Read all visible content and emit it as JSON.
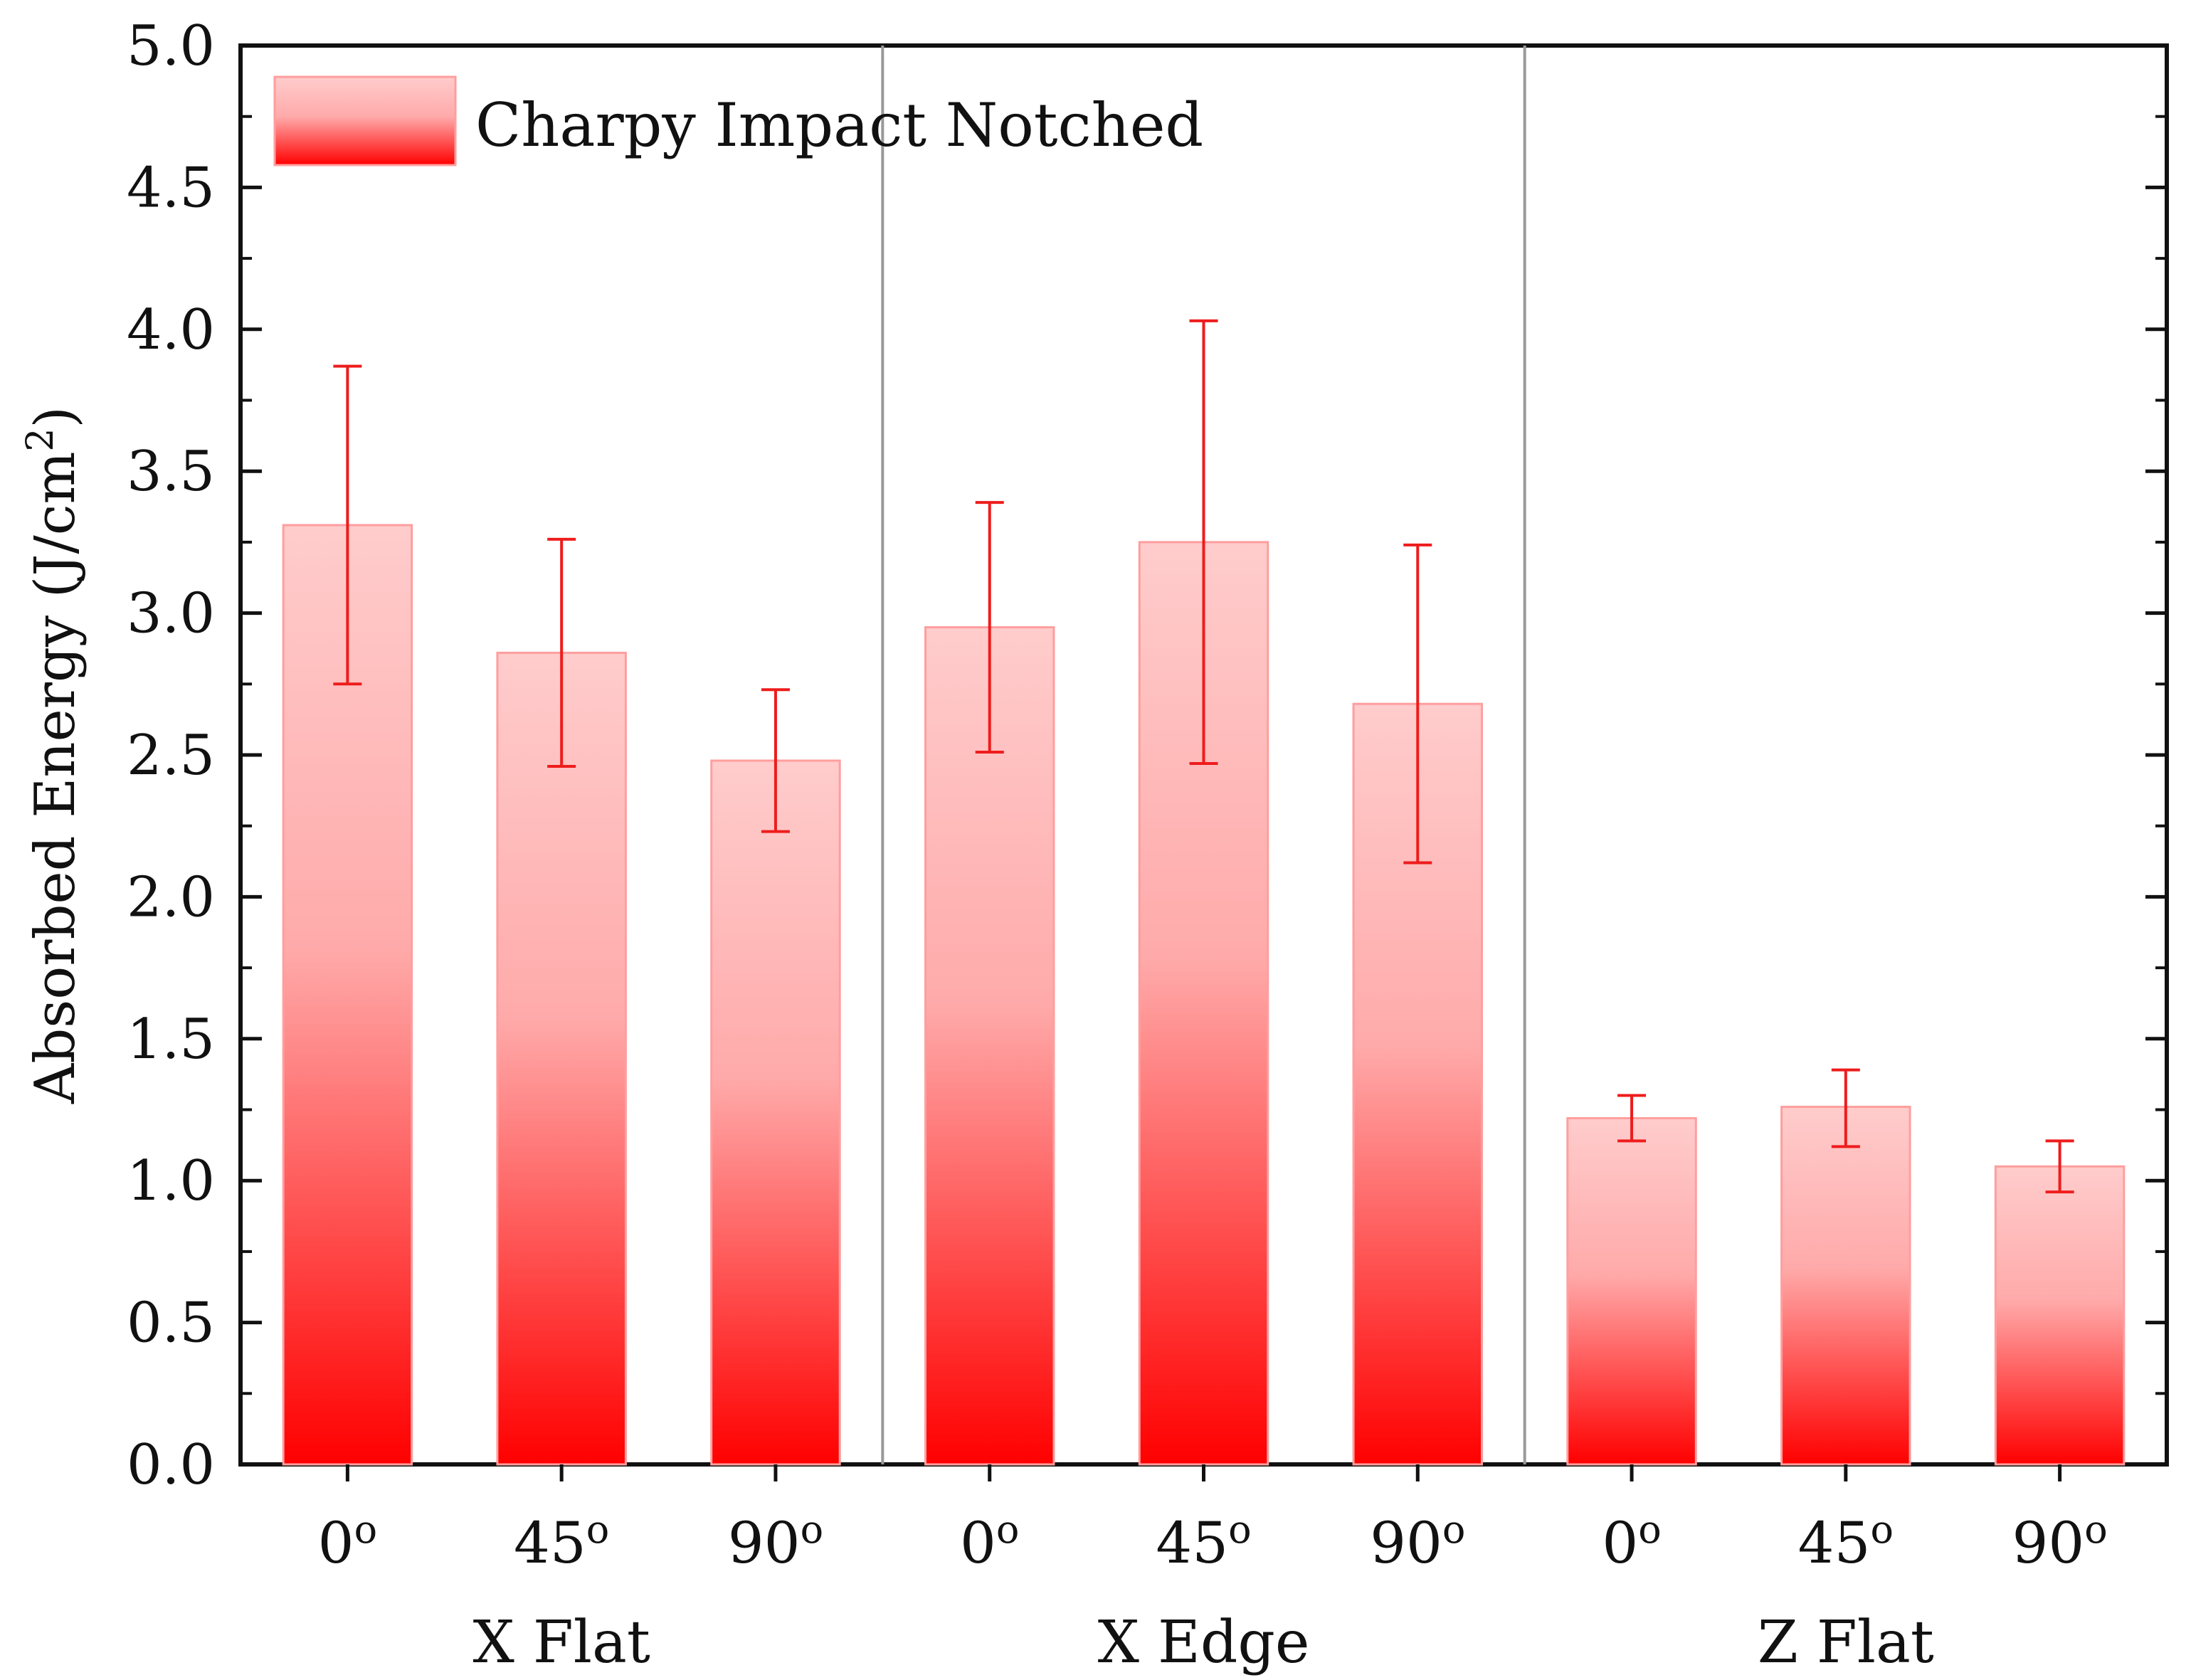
{
  "chart_data": {
    "type": "bar",
    "ylabel": "Absorbed Energy (J/cm",
    "ylabel_sup": "2",
    "ylabel_close": ")",
    "ylim": [
      0,
      5.0
    ],
    "yticks": [
      "0.0",
      "0.5",
      "1.0",
      "1.5",
      "2.0",
      "2.5",
      "3.0",
      "3.5",
      "4.0",
      "4.5",
      "5.0"
    ],
    "legend": {
      "label": "Charpy Impact Notched",
      "position": "top-left"
    },
    "groups": [
      {
        "name": "X Flat",
        "bars": [
          {
            "category": "0",
            "sup": "o",
            "value": 3.31,
            "error_low": 2.75,
            "error_high": 3.87
          },
          {
            "category": "45",
            "sup": "o",
            "value": 2.86,
            "error_low": 2.46,
            "error_high": 3.26
          },
          {
            "category": "90",
            "sup": "o",
            "value": 2.48,
            "error_low": 2.23,
            "error_high": 2.73
          }
        ]
      },
      {
        "name": "X Edge",
        "bars": [
          {
            "category": "0",
            "sup": "o",
            "value": 2.95,
            "error_low": 2.51,
            "error_high": 3.39
          },
          {
            "category": "45",
            "sup": "o",
            "value": 3.25,
            "error_low": 2.47,
            "error_high": 4.03
          },
          {
            "category": "90",
            "sup": "o",
            "value": 2.68,
            "error_low": 2.12,
            "error_high": 3.24
          }
        ]
      },
      {
        "name": "Z Flat",
        "bars": [
          {
            "category": "0",
            "sup": "o",
            "value": 1.22,
            "error_low": 1.14,
            "error_high": 1.3
          },
          {
            "category": "45",
            "sup": "o",
            "value": 1.26,
            "error_low": 1.12,
            "error_high": 1.39
          },
          {
            "category": "90",
            "sup": "o",
            "value": 1.05,
            "error_low": 0.96,
            "error_high": 1.14
          }
        ]
      }
    ],
    "colors": {
      "bar_top": "#ffcccc",
      "bar_bottom": "#ff0000",
      "bar_stroke": "#ff9e9e",
      "error_bar": "#ee1c1c",
      "separator": "#999999",
      "axis": "#111111"
    }
  }
}
